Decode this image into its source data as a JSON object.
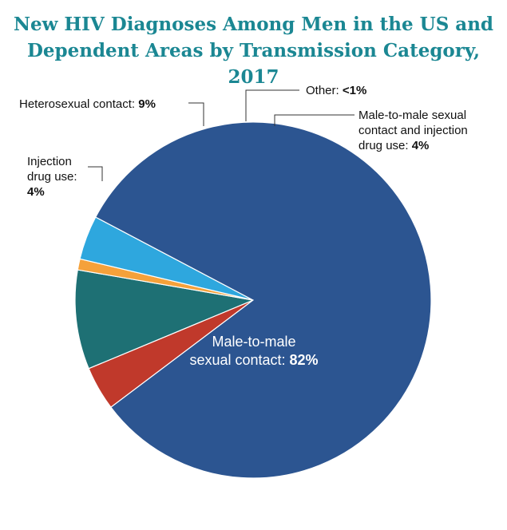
{
  "title_lines": [
    "New HIV Diagnoses Among Men in the US and",
    "Dependent Areas by Transmission Category, 2017"
  ],
  "colors": {
    "title": "#1b8793",
    "background": "#ffffff",
    "leader": "#333333"
  },
  "chart_data": {
    "type": "pie",
    "title": "New HIV Diagnoses Among Men in the US and Dependent Areas by Transmission Category, 2017",
    "unit": "%",
    "slices": [
      {
        "label": "Male-to-male sexual contact",
        "display_value": "82%",
        "value": 82,
        "color": "#2c5591"
      },
      {
        "label": "Injection drug use",
        "display_value": "4%",
        "value": 4,
        "color": "#c0392b"
      },
      {
        "label": "Heterosexual contact",
        "display_value": "9%",
        "value": 9,
        "color": "#1e7074"
      },
      {
        "label": "Other",
        "display_value": "<1%",
        "value": 1,
        "color": "#f5a13a"
      },
      {
        "label": "Male-to-male sexual contact and injection drug use",
        "display_value": "4%",
        "value": 4,
        "color": "#2ea7de"
      }
    ],
    "labels": {
      "msm": {
        "lines": [
          "Male-to-male",
          "sexual contact: "
        ],
        "value": "82%"
      },
      "idu": {
        "lines": [
          "Injection",
          "drug use:"
        ],
        "value": "4%"
      },
      "het": {
        "lines": [
          "Heterosexual contact: "
        ],
        "value": "9%"
      },
      "other": {
        "lines": [
          "Other: "
        ],
        "value": "<1%"
      },
      "msm_idu": {
        "lines": [
          "Male-to-male sexual",
          "contact and injection",
          "drug use: "
        ],
        "value": "4%"
      }
    }
  }
}
